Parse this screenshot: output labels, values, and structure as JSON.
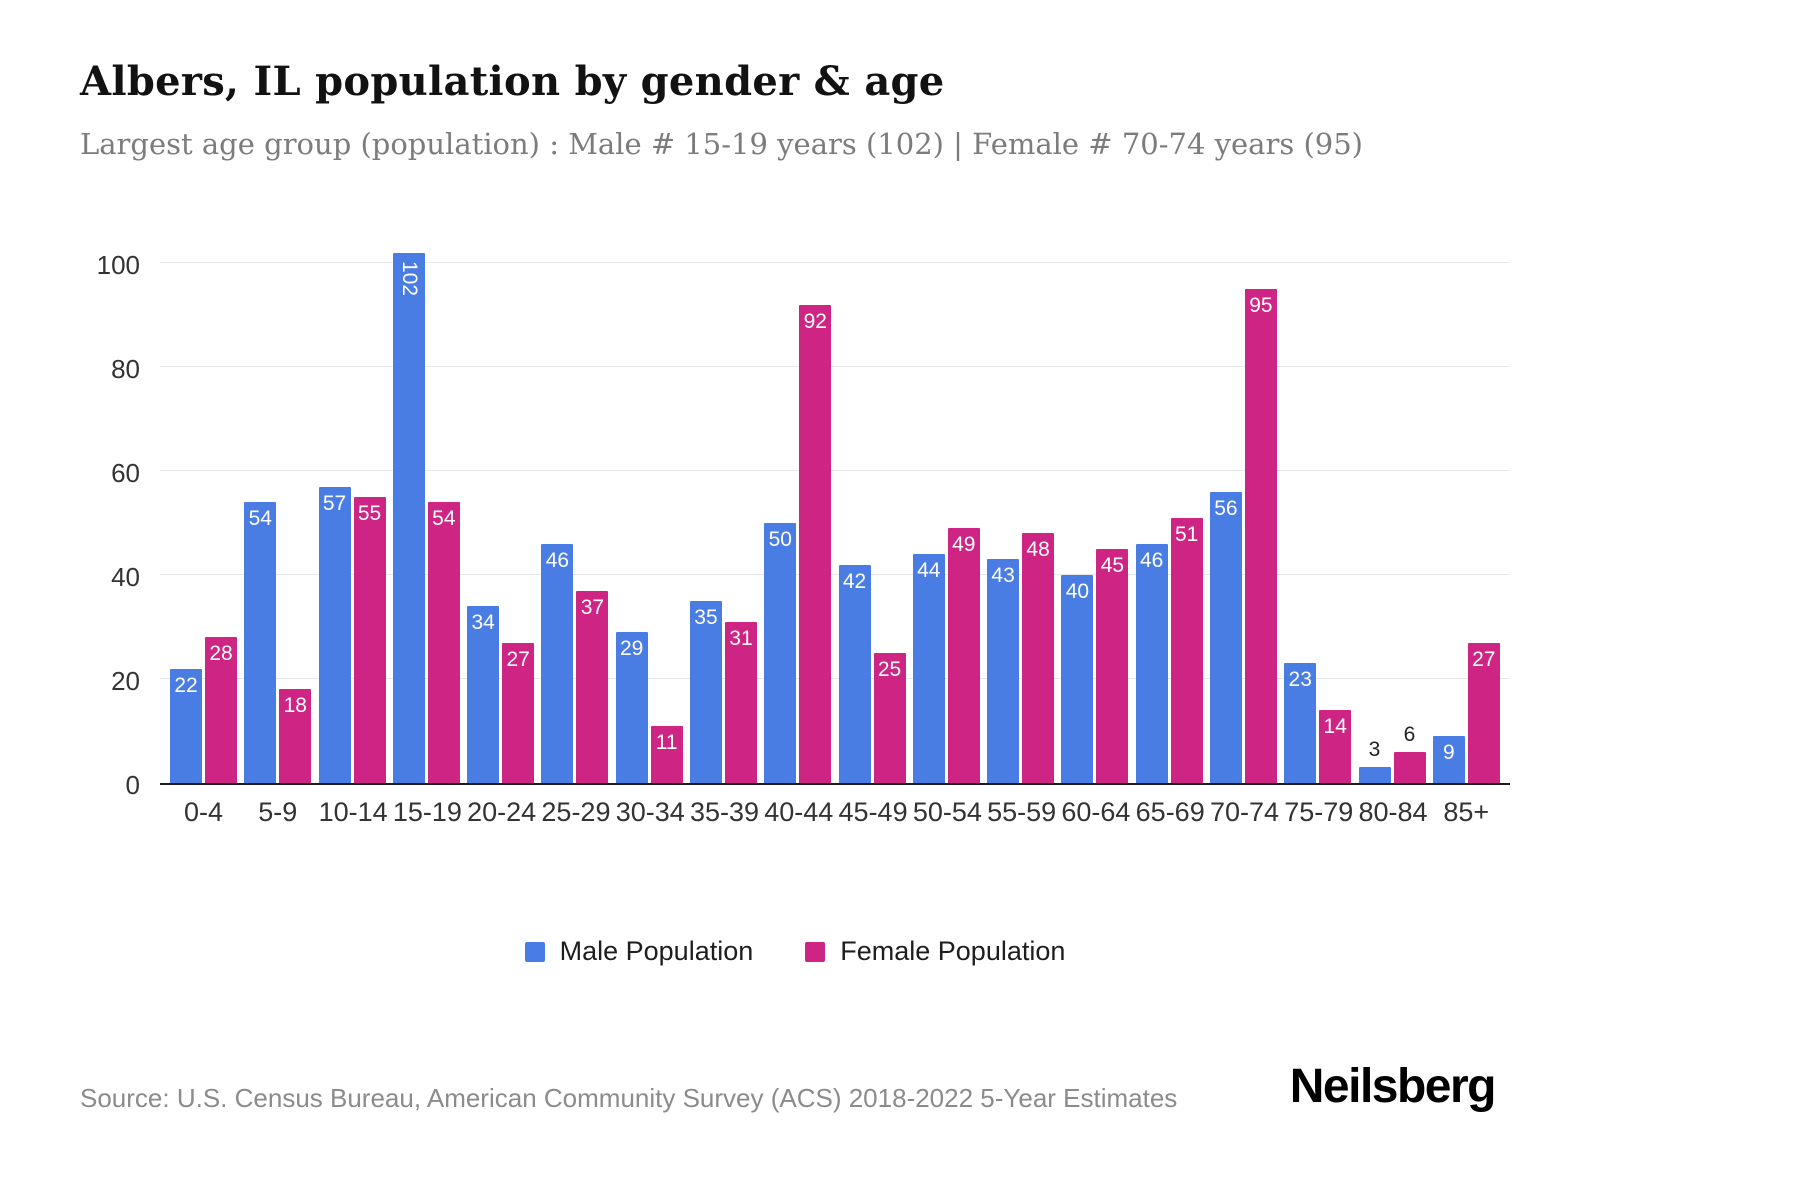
{
  "header": {
    "title": "Albers, IL population by gender & age",
    "subtitle": "Largest age group (population) : Male # 15-19 years (102) | Female # 70-74 years (95)"
  },
  "chart_data": {
    "type": "bar",
    "categories": [
      "0-4",
      "5-9",
      "10-14",
      "15-19",
      "20-24",
      "25-29",
      "30-34",
      "35-39",
      "40-44",
      "45-49",
      "50-54",
      "55-59",
      "60-64",
      "65-69",
      "70-74",
      "75-79",
      "80-84",
      "85+"
    ],
    "series": [
      {
        "name": "Male Population",
        "color": "#4a7de3",
        "values": [
          22,
          54,
          57,
          102,
          34,
          46,
          29,
          35,
          50,
          42,
          44,
          43,
          40,
          46,
          56,
          23,
          3,
          9
        ]
      },
      {
        "name": "Female Population",
        "color": "#ce2484",
        "values": [
          28,
          18,
          55,
          54,
          27,
          37,
          11,
          31,
          92,
          25,
          49,
          48,
          45,
          51,
          95,
          14,
          6,
          27
        ]
      }
    ],
    "ylim": [
      0,
      105
    ],
    "y_ticks": [
      0,
      20,
      40,
      60,
      80,
      100
    ],
    "grid": true,
    "legend_position": "bottom",
    "bar_label_color_inside": "#ffffff",
    "bar_label_color_outside": "#222222"
  },
  "footer": {
    "source": "Source: U.S. Census Bureau, American Community Survey (ACS) 2018-2022 5-Year Estimates",
    "brand": "Neilsberg"
  }
}
